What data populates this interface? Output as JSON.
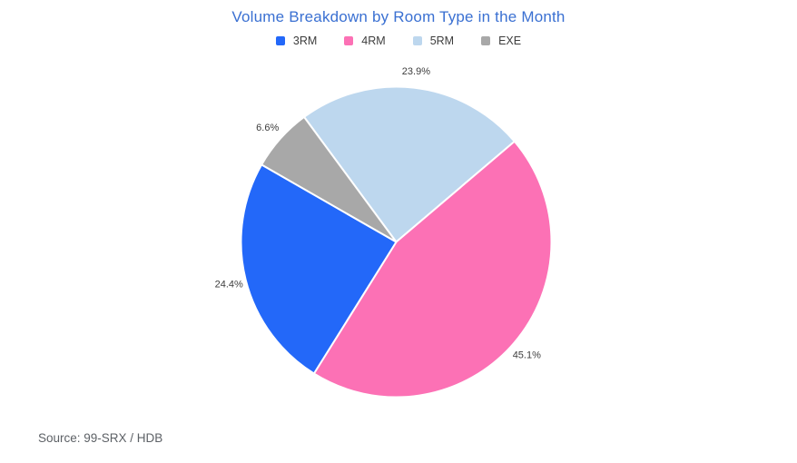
{
  "title": "Volume Breakdown by Room Type in the Month",
  "source_note": "Source: 99-SRX / HDB",
  "legend": [
    {
      "label": "3RM",
      "color": "#2368f9"
    },
    {
      "label": "4RM",
      "color": "#fc71b5"
    },
    {
      "label": "5RM",
      "color": "#bdd7ee"
    },
    {
      "label": "EXE",
      "color": "#a8a8a8"
    }
  ],
  "chart_data": {
    "type": "pie",
    "title": "Volume Breakdown by Room Type in the Month",
    "categories": [
      "3RM",
      "4RM",
      "5RM",
      "EXE"
    ],
    "values": [
      24.4,
      45.1,
      23.9,
      6.6
    ],
    "unit": "%",
    "legend_position": "top",
    "source": "Source: 99-SRX / HDB",
    "start_angle_deg_from_top": -36.4,
    "slices_draw_order_clockwise": [
      {
        "name": "5RM",
        "value": 23.9,
        "label": "23.9%",
        "color": "#bdd7ee"
      },
      {
        "name": "4RM",
        "value": 45.1,
        "label": "45.1%",
        "color": "#fc71b5"
      },
      {
        "name": "3RM",
        "value": 24.4,
        "label": "24.4%",
        "color": "#2368f9"
      },
      {
        "name": "EXE",
        "value": 6.6,
        "label": "6.6%",
        "color": "#a8a8a8"
      }
    ]
  }
}
